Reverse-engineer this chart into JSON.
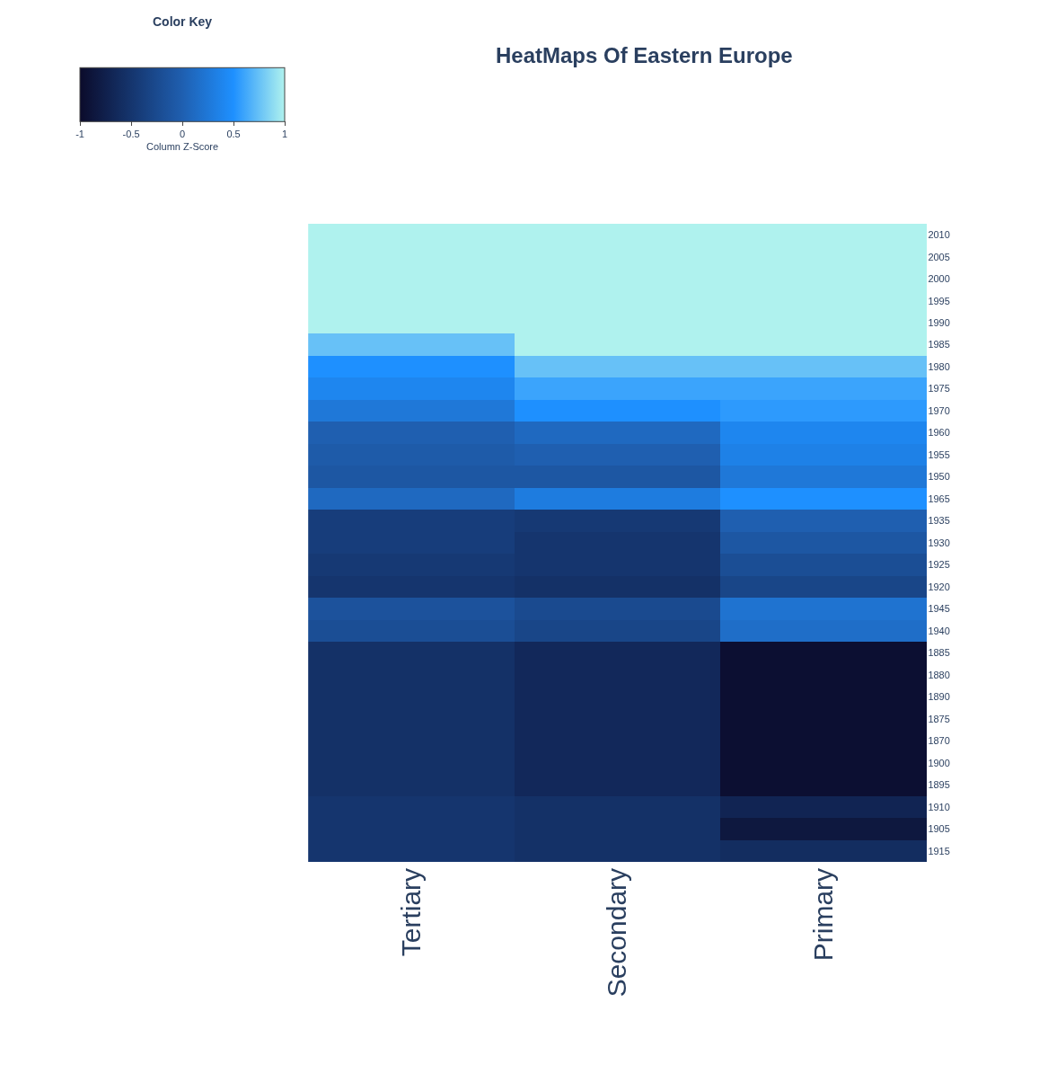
{
  "chart_data": {
    "type": "heatmap",
    "title": "HeatMaps Of Eastern Europe",
    "categories": [
      "Tertiary",
      "Secondary",
      "Primary"
    ],
    "y_categories": [
      "2010",
      "2005",
      "2000",
      "1995",
      "1990",
      "1985",
      "1980",
      "1975",
      "1970",
      "1960",
      "1955",
      "1950",
      "1965",
      "1935",
      "1930",
      "1925",
      "1920",
      "1945",
      "1940",
      "1885",
      "1880",
      "1890",
      "1875",
      "1870",
      "1900",
      "1895",
      "1910",
      "1905",
      "1915"
    ],
    "cells": [
      [
        1,
        1,
        1
      ],
      [
        1,
        1,
        1
      ],
      [
        1,
        1,
        1
      ],
      [
        1,
        1,
        1
      ],
      [
        1,
        1,
        1
      ],
      [
        0.75,
        1,
        1
      ],
      [
        0.5,
        0.75,
        0.75
      ],
      [
        0.4,
        0.6,
        0.6
      ],
      [
        0.25,
        0.5,
        0.55
      ],
      [
        0.0,
        0.1,
        0.4
      ],
      [
        -0.05,
        0.0,
        0.35
      ],
      [
        -0.1,
        -0.1,
        0.25
      ],
      [
        0.1,
        0.3,
        0.5
      ],
      [
        -0.4,
        -0.45,
        0.0
      ],
      [
        -0.4,
        -0.5,
        -0.1
      ],
      [
        -0.45,
        -0.5,
        -0.2
      ],
      [
        -0.5,
        -0.55,
        -0.3
      ],
      [
        -0.15,
        -0.25,
        0.2
      ],
      [
        -0.2,
        -0.3,
        0.15
      ],
      [
        -0.55,
        -0.65,
        -0.95
      ],
      [
        -0.55,
        -0.65,
        -0.95
      ],
      [
        -0.55,
        -0.65,
        -0.95
      ],
      [
        -0.55,
        -0.65,
        -0.95
      ],
      [
        -0.55,
        -0.65,
        -0.95
      ],
      [
        -0.55,
        -0.65,
        -0.95
      ],
      [
        -0.55,
        -0.65,
        -0.95
      ],
      [
        -0.5,
        -0.55,
        -0.7
      ],
      [
        -0.5,
        -0.55,
        -0.85
      ],
      [
        -0.5,
        -0.55,
        -0.6
      ]
    ],
    "clim": [
      -1,
      1
    ],
    "cticks": [
      -1,
      -0.5,
      0,
      0.5,
      1
    ],
    "clabel": "Column Z-Score",
    "annotations": [
      "Color Key"
    ]
  }
}
